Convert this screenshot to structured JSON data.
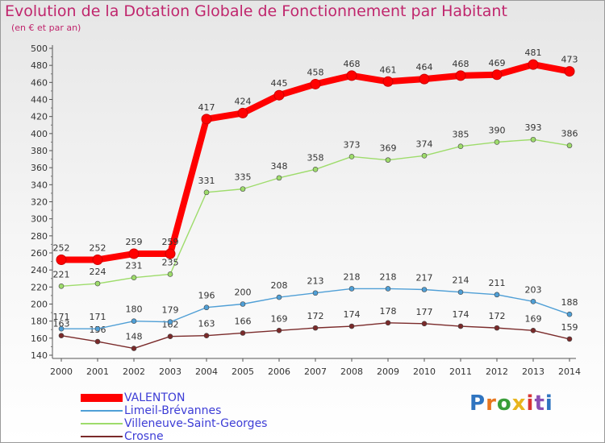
{
  "title": "Evolution de la Dotation Globale de Fonctionnement par Habitant",
  "subtitle": "(en € et par an)",
  "logo": {
    "text": "Proxiti",
    "colors": [
      "#2f74c0",
      "#e8761e",
      "#3a9e3a",
      "#e8b51e",
      "#d83535",
      "#8a4fb3",
      "#2f74c0"
    ]
  },
  "chart_data": {
    "type": "line",
    "title": "Evolution de la Dotation Globale de Fonctionnement par Habitant",
    "subtitle": "(en € et par an)",
    "x": [
      "2000",
      "2001",
      "2002",
      "2003",
      "2004",
      "2005",
      "2006",
      "2007",
      "2008",
      "2009",
      "2010",
      "2011",
      "2012",
      "2013",
      "2014"
    ],
    "ylim": [
      140,
      500
    ],
    "yticks": [
      140,
      160,
      180,
      200,
      220,
      240,
      260,
      280,
      300,
      320,
      340,
      360,
      380,
      400,
      420,
      440,
      460,
      480,
      500
    ],
    "grid": false,
    "legend_position": "bottom-left",
    "series": [
      {
        "name": "VALENTON",
        "color": "#ff0000",
        "values": [
          252,
          252,
          259,
          259,
          417,
          424,
          445,
          458,
          468,
          461,
          464,
          468,
          469,
          481,
          473
        ]
      },
      {
        "name": "Limeil-Brévannes",
        "color": "#4f9fd6",
        "values": [
          171,
          171,
          180,
          179,
          196,
          200,
          208,
          213,
          218,
          218,
          217,
          214,
          211,
          203,
          188
        ]
      },
      {
        "name": "Villeneuve-Saint-Georges",
        "color": "#9edc6b",
        "values": [
          221,
          224,
          231,
          235,
          331,
          335,
          348,
          358,
          373,
          369,
          374,
          385,
          390,
          393,
          386
        ]
      },
      {
        "name": "Crosne",
        "color": "#7a2a2a",
        "values": [
          163,
          156,
          148,
          162,
          163,
          166,
          169,
          172,
          174,
          178,
          177,
          174,
          172,
          169,
          159
        ]
      }
    ]
  }
}
